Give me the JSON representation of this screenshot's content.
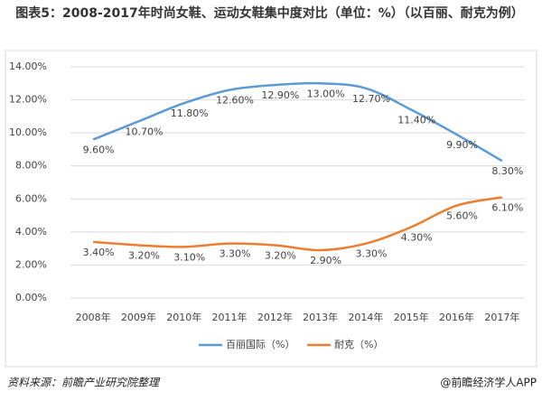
{
  "chart_data": {
    "type": "line",
    "title": "图表5：2008-2017年时尚女鞋、运动女鞋集中度对比（单位：%）（以百丽、耐克为例）",
    "categories": [
      "2008年",
      "2009年",
      "2010年",
      "2011年",
      "2012年",
      "2013年",
      "2014年",
      "2015年",
      "2016年",
      "2017年"
    ],
    "series": [
      {
        "name": "百丽国际（%）",
        "color": "#5b9bd5",
        "values": [
          9.6,
          10.7,
          11.8,
          12.6,
          12.9,
          13.0,
          12.7,
          11.4,
          9.9,
          8.3
        ],
        "value_labels": [
          "9.60%",
          "10.70%",
          "11.80%",
          "12.60%",
          "12.90%",
          "13.00%",
          "12.70%",
          "11.40%",
          "9.90%",
          "8.30%"
        ]
      },
      {
        "name": "耐克（%）",
        "color": "#ed7d31",
        "values": [
          3.4,
          3.2,
          3.1,
          3.3,
          3.2,
          2.9,
          3.3,
          4.3,
          5.6,
          6.1
        ],
        "value_labels": [
          "3.40%",
          "3.20%",
          "3.10%",
          "3.30%",
          "3.20%",
          "2.90%",
          "3.30%",
          "4.30%",
          "5.60%",
          "6.10%"
        ]
      }
    ],
    "ylim": [
      0,
      14
    ],
    "yticks": [
      {
        "value": 0,
        "label": "0.00%"
      },
      {
        "value": 2,
        "label": "2.00%"
      },
      {
        "value": 4,
        "label": "4.00%"
      },
      {
        "value": 6,
        "label": "6.00%"
      },
      {
        "value": 8,
        "label": "8.00%"
      },
      {
        "value": 10,
        "label": "10.00%"
      },
      {
        "value": 12,
        "label": "12.00%"
      },
      {
        "value": 14,
        "label": "14.00%"
      }
    ],
    "grid": true,
    "source": "资料来源：前瞻产业研究院整理",
    "credit": "@前瞻经济学人APP"
  }
}
